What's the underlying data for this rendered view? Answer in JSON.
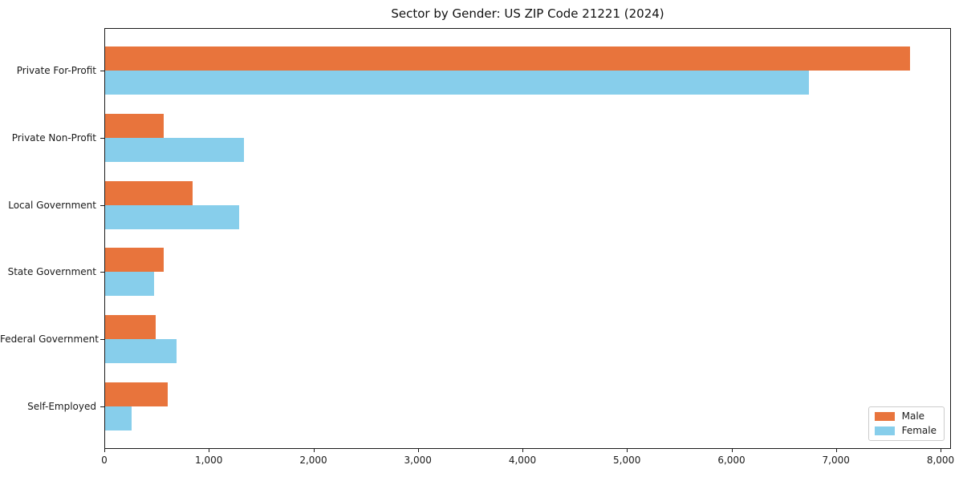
{
  "chart_data": {
    "type": "bar",
    "orientation": "horizontal",
    "title": "Sector by Gender: US ZIP Code 21221 (2024)",
    "categories": [
      "Private For-Profit",
      "Private Non-Profit",
      "Local Government",
      "State Government",
      "Federal Government",
      "Self-Employed"
    ],
    "series": [
      {
        "name": "Male",
        "color": "#E8743C",
        "values": [
          7700,
          560,
          835,
          560,
          480,
          600
        ]
      },
      {
        "name": "Female",
        "color": "#87CEEB",
        "values": [
          6730,
          1330,
          1280,
          465,
          680,
          250
        ]
      }
    ],
    "xlabel": "",
    "ylabel": "",
    "xlim": [
      0,
      8100
    ],
    "xticks": [
      0,
      1000,
      2000,
      3000,
      4000,
      5000,
      6000,
      7000,
      8000
    ],
    "grid": false,
    "legend_position": "lower right",
    "background_color": "#ffffff",
    "axis_color": "#1a1a1a"
  }
}
